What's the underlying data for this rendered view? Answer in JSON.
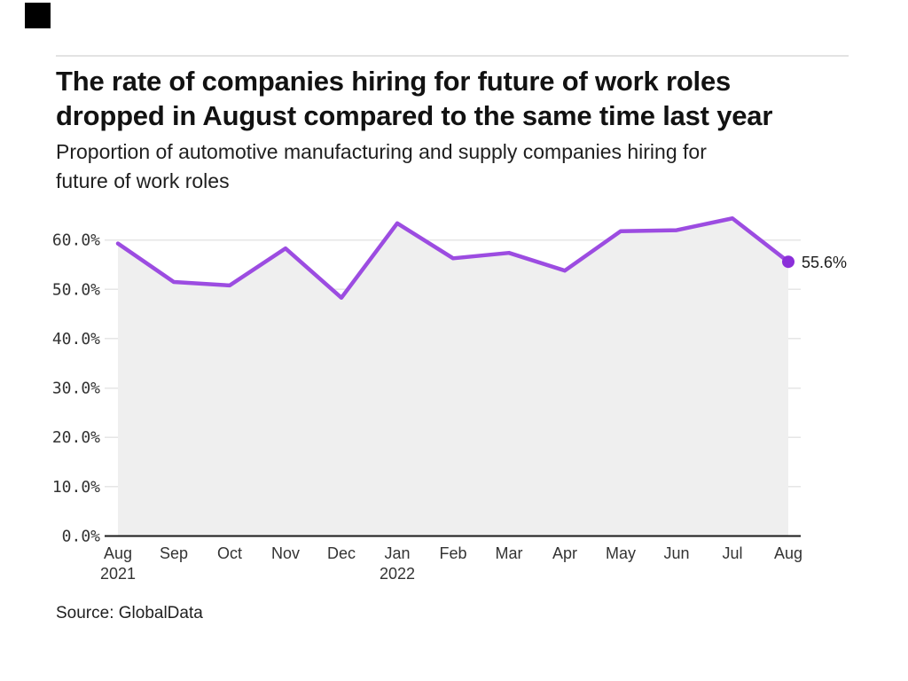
{
  "logo": {
    "color": "#000000"
  },
  "header": {
    "title_line1": "The rate of companies hiring for future of work roles",
    "title_line2": "dropped in August compared to the same time last year",
    "subtitle_line1": "Proportion of automotive manufacturing and supply companies hiring for",
    "subtitle_line2": "future of work roles"
  },
  "source": "Source: GlobalData",
  "chart_data": {
    "type": "line",
    "title": "The rate of companies hiring for future of work roles dropped in August compared to the same time last year",
    "subtitle": "Proportion of automotive manufacturing and supply companies hiring for future of work roles",
    "categories": [
      {
        "month": "Aug",
        "year": "2021"
      },
      {
        "month": "Sep"
      },
      {
        "month": "Oct"
      },
      {
        "month": "Nov"
      },
      {
        "month": "Dec"
      },
      {
        "month": "Jan",
        "year": "2022"
      },
      {
        "month": "Feb"
      },
      {
        "month": "Mar"
      },
      {
        "month": "Apr"
      },
      {
        "month": "May"
      },
      {
        "month": "Jun"
      },
      {
        "month": "Jul"
      },
      {
        "month": "Aug"
      }
    ],
    "series": [
      {
        "name": "Proportion of companies hiring for future of work roles",
        "values": [
          59.3,
          51.5,
          50.8,
          58.3,
          48.3,
          63.4,
          56.3,
          57.4,
          53.8,
          61.8,
          62.0,
          64.4,
          55.6
        ]
      }
    ],
    "end_label": "55.6%",
    "y_ticks": [
      {
        "value": 0,
        "label": "0.0%"
      },
      {
        "value": 10,
        "label": "10.0%"
      },
      {
        "value": 20,
        "label": "20.0%"
      },
      {
        "value": 30,
        "label": "30.0%"
      },
      {
        "value": 40,
        "label": "40.0%"
      },
      {
        "value": 50,
        "label": "50.0%"
      },
      {
        "value": 60,
        "label": "60.0%"
      }
    ],
    "ylim": [
      0,
      66
    ],
    "grid": true,
    "legend_position": "none",
    "colors": {
      "line": "#9c4ce1",
      "marker": "#8b2fd9",
      "area_fill": "#efefef",
      "gridline": "#e6e6e6",
      "axis": "#1a1a1a",
      "tick_text": "#333333",
      "end_label_text": "#1c1c1c"
    }
  }
}
